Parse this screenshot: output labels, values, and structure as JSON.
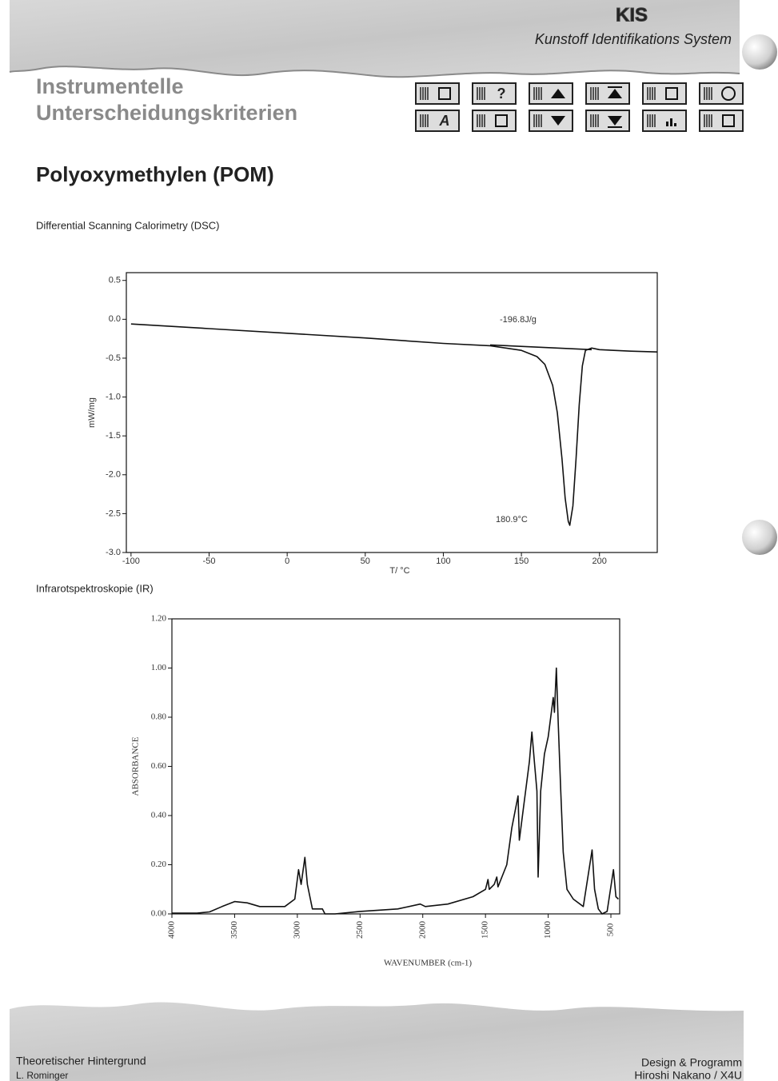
{
  "header": {
    "logo": "KIS",
    "subtitle": "Kunstoff Identifikations System",
    "line1": "Instrumentelle",
    "line2": "Unterscheidungskriterien"
  },
  "toolbar": {
    "help": "?",
    "index": "A"
  },
  "title": "Polyoxymethylen (POM)",
  "sections": [
    "Differential Scanning Calorimetry (DSC)",
    "Infrarotspektroskopie (IR)"
  ],
  "chart_data": [
    {
      "type": "line",
      "xlabel": "T/ °C",
      "ylabel": "mW/mg",
      "xlim": [
        -103,
        237
      ],
      "ylim": [
        -3.0,
        0.6
      ],
      "xticks": [
        -100,
        -50,
        0,
        50,
        100,
        150,
        200
      ],
      "yticks": [
        0.5,
        {
          "value": 0,
          "label": "0.0"
        },
        -0.5,
        {
          "value": -1,
          "label": "-1.0"
        },
        -1.5,
        {
          "value": -2,
          "label": "-2.0"
        },
        -2.5,
        {
          "value": -3,
          "label": "-3.0"
        }
      ],
      "annotations": [
        "-196.8J/g",
        "180.9°C"
      ],
      "series": [
        {
          "color": "#111111",
          "x": [
            -100,
            -50,
            0,
            50,
            100,
            130,
            150,
            160,
            165,
            170,
            173,
            176,
            178,
            180,
            181,
            183,
            185,
            187,
            189,
            191,
            195,
            200,
            220,
            237
          ],
          "values": [
            -0.06,
            -0.12,
            -0.18,
            -0.24,
            -0.31,
            -0.34,
            -0.4,
            -0.48,
            -0.58,
            -0.85,
            -1.2,
            -1.8,
            -2.3,
            -2.6,
            -2.65,
            -2.4,
            -1.8,
            -1.1,
            -0.6,
            -0.4,
            -0.37,
            -0.39,
            -0.41,
            -0.42
          ]
        },
        {
          "color": "#111111",
          "x": [
            130,
            195
          ],
          "values": [
            -0.33,
            -0.39
          ]
        }
      ]
    },
    {
      "type": "line",
      "xlabel": "WAVENUMBER (cm-1)",
      "ylabel": "ABSORBANCE",
      "xlim": [
        4000,
        430
      ],
      "ylim": [
        0,
        1.2
      ],
      "xticks": [
        4000,
        3500,
        3000,
        2500,
        2000,
        1500,
        1000,
        500
      ],
      "yticks": [
        {
          "value": 0,
          "label": "0.00"
        },
        {
          "value": 0.2,
          "label": "0.20"
        },
        {
          "value": 0.4,
          "label": "0.40"
        },
        {
          "value": 0.6,
          "label": "0.60"
        },
        {
          "value": 0.8,
          "label": "0.80"
        },
        {
          "value": 1,
          "label": "1.00"
        },
        {
          "value": 1.2,
          "label": "1.20"
        }
      ],
      "series": [
        {
          "color": "#111111",
          "x": [
            4000,
            3800,
            3700,
            3600,
            3500,
            3400,
            3300,
            3100,
            3020,
            2990,
            2970,
            2940,
            2920,
            2880,
            2800,
            2780,
            2700,
            2500,
            2200,
            2020,
            1980,
            1800,
            1600,
            1500,
            1480,
            1470,
            1430,
            1410,
            1400,
            1330,
            1290,
            1240,
            1230,
            1200,
            1150,
            1130,
            1110,
            1090,
            1080,
            1060,
            1030,
            1000,
            960,
            950,
            935,
            920,
            900,
            880,
            850,
            800,
            720,
            650,
            630,
            600,
            570,
            530,
            480,
            460,
            440
          ],
          "values": [
            0.003,
            0.003,
            0.008,
            0.03,
            0.05,
            0.045,
            0.03,
            0.03,
            0.06,
            0.18,
            0.12,
            0.23,
            0.12,
            0.02,
            0.02,
            0.0,
            0.0,
            0.01,
            0.02,
            0.04,
            0.03,
            0.04,
            0.07,
            0.1,
            0.14,
            0.1,
            0.12,
            0.15,
            0.11,
            0.2,
            0.35,
            0.48,
            0.3,
            0.42,
            0.62,
            0.74,
            0.62,
            0.5,
            0.15,
            0.5,
            0.65,
            0.72,
            0.88,
            0.82,
            1.0,
            0.78,
            0.5,
            0.25,
            0.1,
            0.06,
            0.03,
            0.26,
            0.1,
            0.02,
            0.0,
            0.01,
            0.18,
            0.07,
            0.06
          ]
        }
      ]
    }
  ],
  "footer": {
    "left1": "Theoretischer Hintergrund",
    "left2": "L. Rominger",
    "right1": "Design & Programm",
    "right2": "Hiroshi Nakano / X4U"
  }
}
